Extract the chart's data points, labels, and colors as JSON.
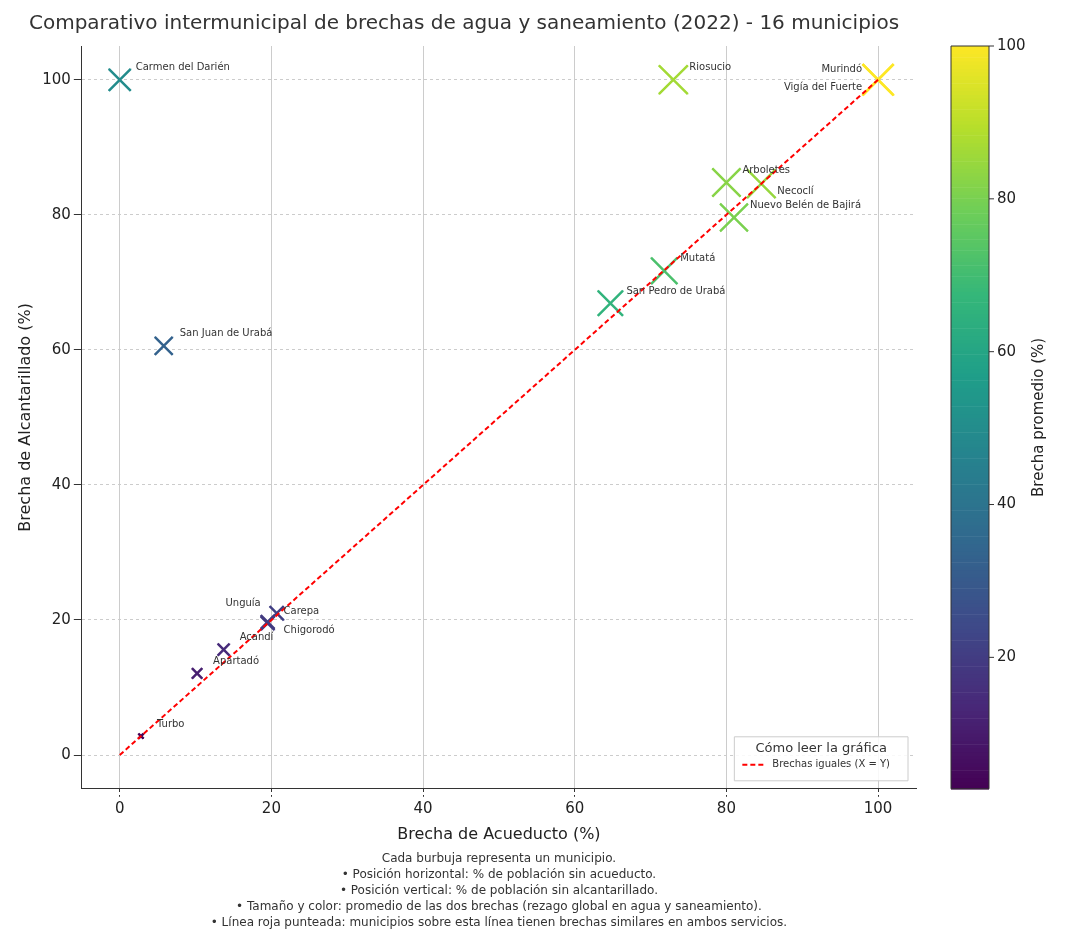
{
  "chart_data": {
    "type": "bubble",
    "title": "Comparativo intermunicipal de brechas de agua y saneamiento (2022) - 16 municipios",
    "xlabel": "Brecha de Acueducto (%)",
    "ylabel": "Brecha de Alcantarillado (%)",
    "clabel": "Brecha promedio (%)",
    "legend_title": "Cómo leer la gráfica",
    "legend": "bottom right",
    "grid": true,
    "xlim": [
      -5,
      105
    ],
    "ylim": [
      -5,
      105
    ],
    "xticks": [
      0,
      20,
      40,
      60,
      80,
      100
    ],
    "yticks": [
      0,
      20,
      40,
      60,
      80,
      100
    ],
    "clim": [
      2.8,
      100
    ],
    "cticks": [
      20,
      40,
      60,
      80,
      100
    ],
    "series": [
      {
        "marker": "cross",
        "colors": [
          "#238c8c",
          "#a3da36",
          "#fde725",
          "#fde725",
          "#88d447",
          "#96d73e",
          "#7bd150",
          "#4bc06c",
          "#31b37c",
          "#33628d",
          "#440154",
          "#471f70",
          "#472b7a",
          "#433b81",
          "#433b81",
          "#413f83"
        ],
        "x": [
          0,
          73,
          100,
          100,
          80,
          84.6,
          81,
          71.8,
          64.7,
          5.8,
          2.8,
          10.2,
          13.7,
          19.5,
          19.5,
          20.7
        ],
        "values": [
          100,
          100,
          100,
          100,
          84.8,
          84.6,
          79.6,
          71.7,
          66.9,
          60.6,
          2.8,
          12.1,
          15.6,
          19.5,
          19.7,
          21
        ],
        "cvalues": [
          50,
          86.5,
          100,
          100,
          82.4,
          84.6,
          80.3,
          71.8,
          65.8,
          33.2,
          2.8,
          11.2,
          14.7,
          19.5,
          19.6,
          20.9
        ],
        "sizes": [
          0.5,
          0.865,
          1,
          1,
          0.824,
          0.846,
          0.803,
          0.718,
          0.658,
          0.332,
          0.028,
          0.112,
          0.147,
          0.195,
          0.196,
          0.209
        ]
      },
      {
        "type": "line",
        "name": "Brechas iguales (X = Y)",
        "color": "#ff0000",
        "line_style": "dashed",
        "x": [
          0,
          100
        ],
        "values": [
          0,
          100
        ]
      }
    ],
    "annotations": [
      {
        "text": "Carmen del Darién",
        "x": 0,
        "y": 100
      },
      {
        "text": "Riosucio",
        "x": 73,
        "y": 100
      },
      {
        "text": "Murindó",
        "x": 100,
        "y": 100
      },
      {
        "text": "Vigía del Fuerte",
        "x": 100,
        "y": 100
      },
      {
        "text": "Arboletes",
        "x": 80,
        "y": 84.8
      },
      {
        "text": "Necoclí",
        "x": 84.6,
        "y": 84.6
      },
      {
        "text": "Nuevo Belén de Bajirá",
        "x": 81,
        "y": 79.6
      },
      {
        "text": "Mutatá",
        "x": 71.8,
        "y": 71.7
      },
      {
        "text": "San Pedro de Urabá",
        "x": 64.7,
        "y": 66.9
      },
      {
        "text": "San Juan de Urabá",
        "x": 5.8,
        "y": 60.6
      },
      {
        "text": "Turbo",
        "x": 2.8,
        "y": 2.8
      },
      {
        "text": "Apartadó",
        "x": 10.2,
        "y": 12.1
      },
      {
        "text": "Acandí",
        "x": 13.7,
        "y": 15.6
      },
      {
        "text": "Carepa",
        "x": 19.5,
        "y": 19.5
      },
      {
        "text": "Chigorodó",
        "x": 19.5,
        "y": 19.7
      },
      {
        "text": "Unguía",
        "x": 20.7,
        "y": 21
      },
      "Cada burbuja representa un municipio.",
      "• Posición horizontal: % de población sin acueducto.",
      "• Posición vertical: % de población sin alcantarillado.",
      "• Tamaño y color: promedio de las dos brechas (rezago global en agua y saneamiento).",
      "• Línea roja punteada: municipios sobre esta línea tienen brechas similares en ambos servicios."
    ]
  }
}
